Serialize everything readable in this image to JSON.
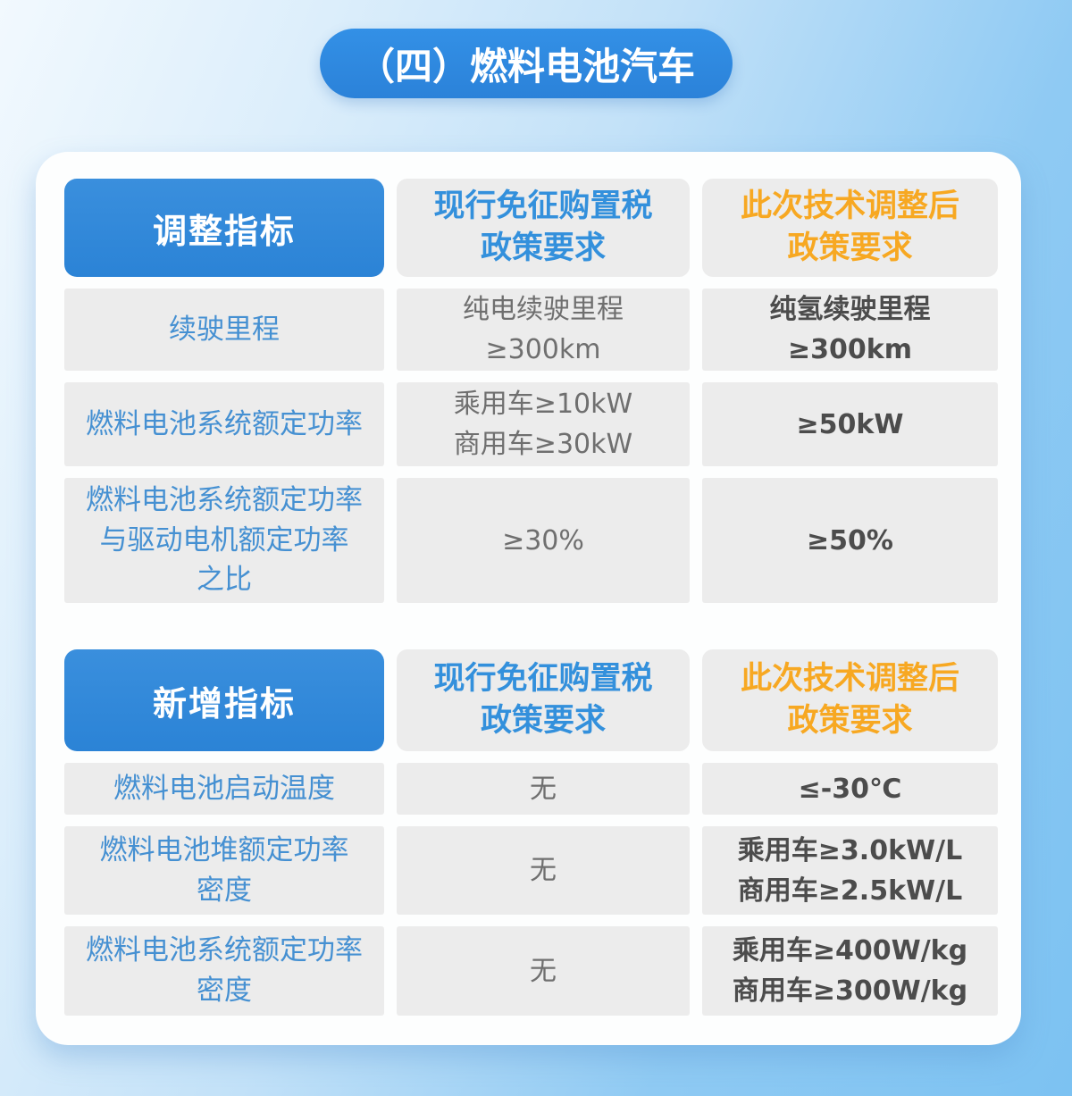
{
  "title": "（四）燃料电池汽车",
  "colors": {
    "banner_blue": "#2e86dd",
    "header_cell_blue": "#2e87d9",
    "current_policy_header_blue": "#3390dc",
    "adjusted_policy_header_orange": "#f7a822",
    "indicator_text_blue": "#4590d2",
    "current_value_gray": "#6f6f6f",
    "adjusted_value_dark": "#4c4c4c",
    "cell_background_gray": "#ececec",
    "background_sky_blue": "#7cc2f2"
  },
  "tables": [
    {
      "header": {
        "indicator": "调整指标",
        "current": "现行免征购置税\n政策要求",
        "adjusted": "此次技术调整后\n政策要求"
      },
      "rows": [
        {
          "indicator": "续驶里程",
          "current": "纯电续驶里程\n≥300km",
          "adjusted": "纯氢续驶里程\n≥300km"
        },
        {
          "indicator": "燃料电池系统额定功率",
          "current": "乘用车≥10kW\n商用车≥30kW",
          "adjusted": "≥50kW"
        },
        {
          "indicator": "燃料电池系统额定功率\n与驱动电机额定功率\n之比",
          "current": "≥30%",
          "adjusted": "≥50%"
        }
      ]
    },
    {
      "header": {
        "indicator": "新增指标",
        "current": "现行免征购置税\n政策要求",
        "adjusted": "此次技术调整后\n政策要求"
      },
      "rows": [
        {
          "indicator": "燃料电池启动温度",
          "current": "无",
          "adjusted": "≤-30℃"
        },
        {
          "indicator": "燃料电池堆额定功率\n密度",
          "current": "无",
          "adjusted": "乘用车≥3.0kW/L\n商用车≥2.5kW/L"
        },
        {
          "indicator": "燃料电池系统额定功率\n密度",
          "current": "无",
          "adjusted": "乘用车≥400W/kg\n商用车≥300W/kg"
        }
      ]
    }
  ]
}
